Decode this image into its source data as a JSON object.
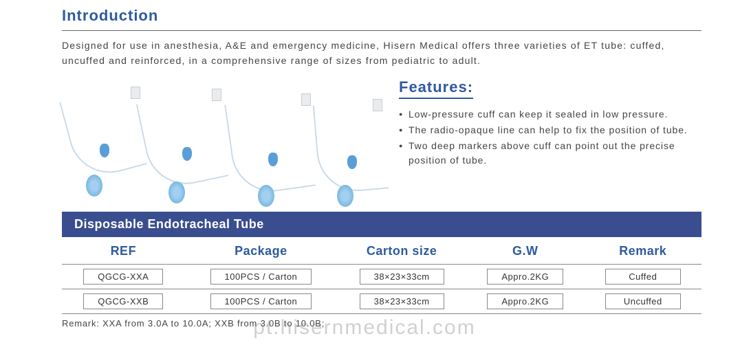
{
  "intro": {
    "heading": "Introduction",
    "text": "Designed for use in anesthesia, A&E and emergency medicine, Hisern Medical offers three varieties of ET tube: cuffed, uncuffed and reinforced, in a comprehensive range of sizes from pediatric to adult."
  },
  "features": {
    "heading": "Features:",
    "items": [
      "Low-pressure cuff can keep it sealed in low pressure.",
      "The radio-opaque line can help to fix the position of tube.",
      "Two deep markers above cuff can point out the precise position of tube."
    ]
  },
  "table": {
    "title": "Disposable Endotracheal Tube",
    "columns": [
      "REF",
      "Package",
      "Carton size",
      "G.W",
      "Remark"
    ],
    "rows": [
      {
        "ref": "QGCG-XXA",
        "package": "100PCS / Carton",
        "carton": "38×23×33cm",
        "gw": "Appro.2KG",
        "remark": "Cuffed"
      },
      {
        "ref": "QGCG-XXB",
        "package": "100PCS / Carton",
        "carton": "38×23×33cm",
        "gw": "Appro.2KG",
        "remark": "Uncuffed"
      }
    ],
    "note": "Remark: XXA from 3.0A to 10.0A; XXB from 3.0B to 10.0B;"
  },
  "watermark": "pt.hisernmedical.com",
  "colors": {
    "heading": "#2e5a9e",
    "tableHeaderBg": "#3a4d8f",
    "bodyText": "#444444",
    "border": "#888888"
  }
}
